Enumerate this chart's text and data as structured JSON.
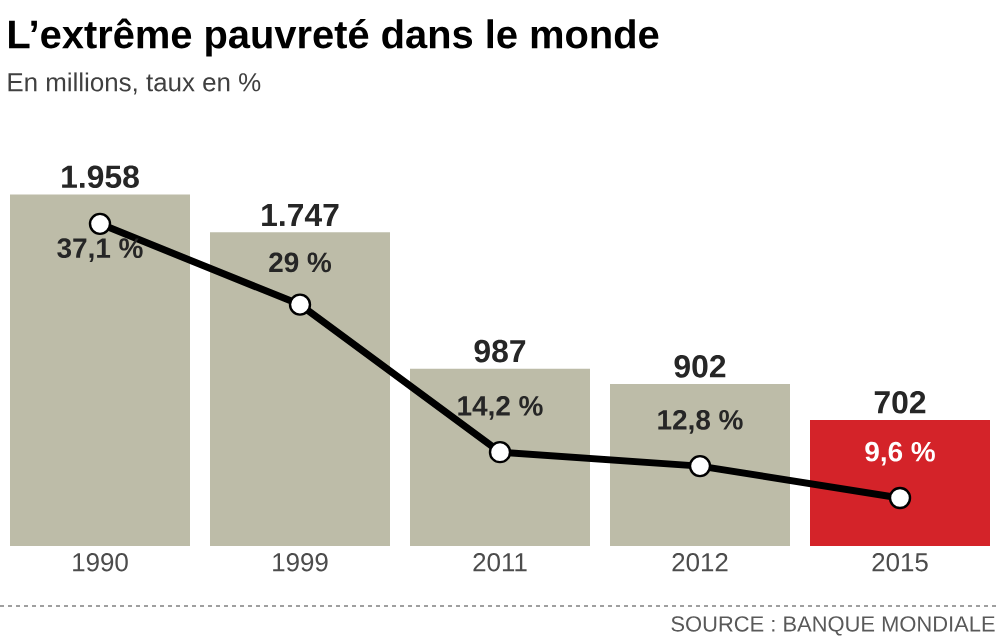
{
  "chart_data": {
    "type": "bar",
    "title": "L’extrême pauvreté dans le monde",
    "subtitle": "En millions, taux en %",
    "categories": [
      "1990",
      "1999",
      "2011",
      "2012",
      "2015"
    ],
    "marker": "circle",
    "series": [
      {
        "colors": [
          "#bdbca8",
          "#bdbca8",
          "#bdbca8",
          "#bdbca8",
          "#d42329"
        ],
        "values": [
          1958,
          1747,
          987,
          902,
          702
        ],
        "value_labels": [
          "1.958",
          "1.747",
          "987",
          "902",
          "702"
        ]
      },
      {
        "type": "line",
        "axis": "y2",
        "color": "#000000",
        "values": [
          37.1,
          29,
          14.2,
          12.8,
          9.6
        ],
        "value_labels": [
          "37,1 %",
          "29 %",
          "14,2 %",
          "12,8 %",
          "9,6 %"
        ]
      }
    ],
    "annotations": [
      "SOURCE : BANQUE MONDIALE"
    ]
  }
}
